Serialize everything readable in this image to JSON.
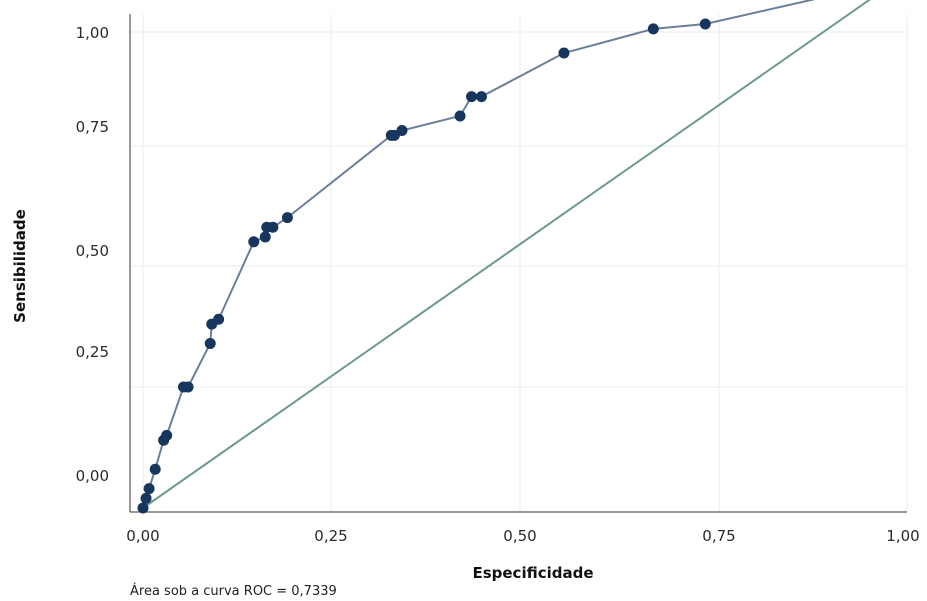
{
  "chart_data": {
    "type": "line",
    "xlabel": "Especificidade",
    "ylabel": "Sensibilidade",
    "x_ticks": [
      "0,00",
      "0,25",
      "0,50",
      "0,75",
      "1,00"
    ],
    "y_ticks": [
      "0,00",
      "0,25",
      "0,50",
      "0,75",
      "1,00"
    ],
    "xlim": [
      0,
      1
    ],
    "ylim": [
      0,
      1
    ],
    "grid": true,
    "series": [
      {
        "x": [
          0.0,
          0.004,
          0.008,
          0.016,
          0.027,
          0.031,
          0.053,
          0.059,
          0.088,
          0.09,
          0.099,
          0.145,
          0.16,
          0.162,
          0.17,
          0.189,
          0.325,
          0.329,
          0.339,
          0.415,
          0.43,
          0.443,
          0.551,
          0.668,
          0.736,
          0.987
        ],
        "y": [
          0.0,
          0.02,
          0.04,
          0.08,
          0.14,
          0.15,
          0.25,
          0.25,
          0.34,
          0.38,
          0.39,
          0.55,
          0.56,
          0.58,
          0.58,
          0.6,
          0.77,
          0.77,
          0.78,
          0.81,
          0.85,
          0.85,
          0.94,
          0.99,
          1.0,
          1.09
        ],
        "color": "#17365d",
        "line_color": "#6b7f99"
      },
      {
        "x": [
          0.0,
          0.987
        ],
        "y": [
          0.0,
          1.09
        ],
        "color": "#6e9a88"
      }
    ],
    "annotation": "Área sob a curva ROC = 0,7339"
  }
}
